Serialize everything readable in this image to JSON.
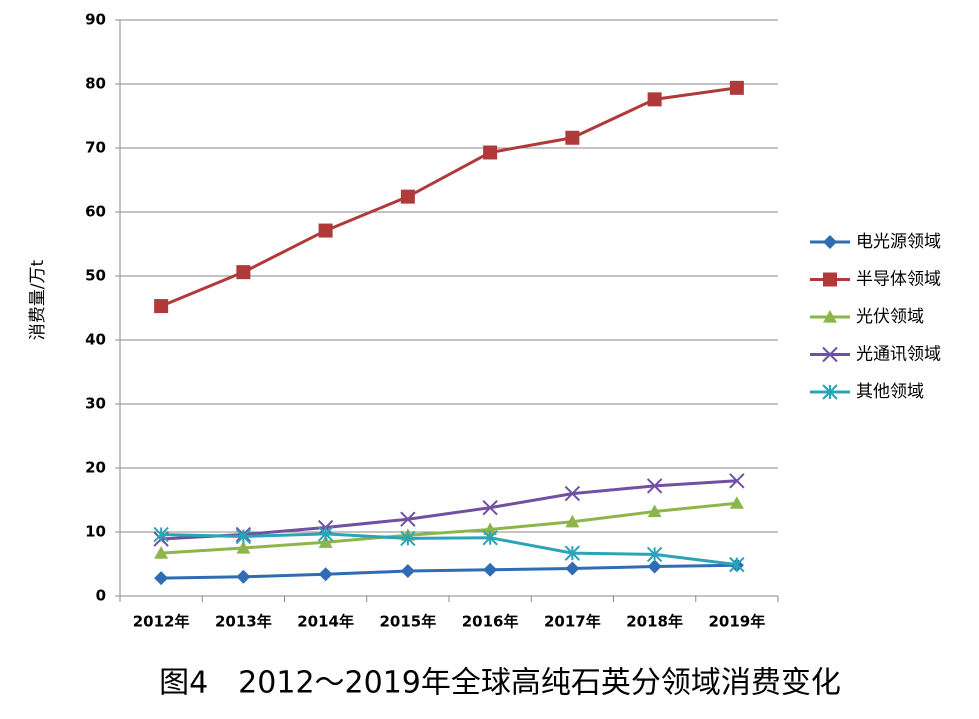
{
  "chart_data": {
    "type": "line",
    "caption": "图4　2012～2019年全球高纯石英分领域消费变化",
    "y_label": "消费量/万t",
    "categories": [
      "2012年",
      "2013年",
      "2014年",
      "2015年",
      "2016年",
      "2017年",
      "2018年",
      "2019年"
    ],
    "series": [
      {
        "name": "电光源领域",
        "color": "#2f6cb3",
        "marker": "diamond",
        "values": [
          2.8,
          3.0,
          3.4,
          3.9,
          4.1,
          4.3,
          4.6,
          4.8
        ]
      },
      {
        "name": "半导体领域",
        "color": "#b03a3a",
        "marker": "square",
        "values": [
          45.3,
          50.6,
          57.1,
          62.4,
          69.3,
          71.6,
          77.6,
          79.4
        ]
      },
      {
        "name": "光伏领域",
        "color": "#8db54b",
        "marker": "triangle",
        "values": [
          6.7,
          7.5,
          8.4,
          9.5,
          10.4,
          11.6,
          13.2,
          14.5
        ]
      },
      {
        "name": "光通讯领域",
        "color": "#7150a2",
        "marker": "x",
        "values": [
          8.9,
          9.6,
          10.7,
          12.0,
          13.8,
          16.0,
          17.2,
          18.0
        ]
      },
      {
        "name": "其他领域",
        "color": "#2ba4b8",
        "marker": "asterisk",
        "values": [
          9.6,
          9.3,
          9.7,
          9.0,
          9.1,
          6.7,
          6.5,
          4.9
        ]
      }
    ],
    "ylim": [
      0,
      90
    ],
    "yticks": [
      0,
      10,
      20,
      30,
      40,
      50,
      60,
      70,
      80,
      90
    ],
    "grid": true,
    "legend": "right"
  }
}
